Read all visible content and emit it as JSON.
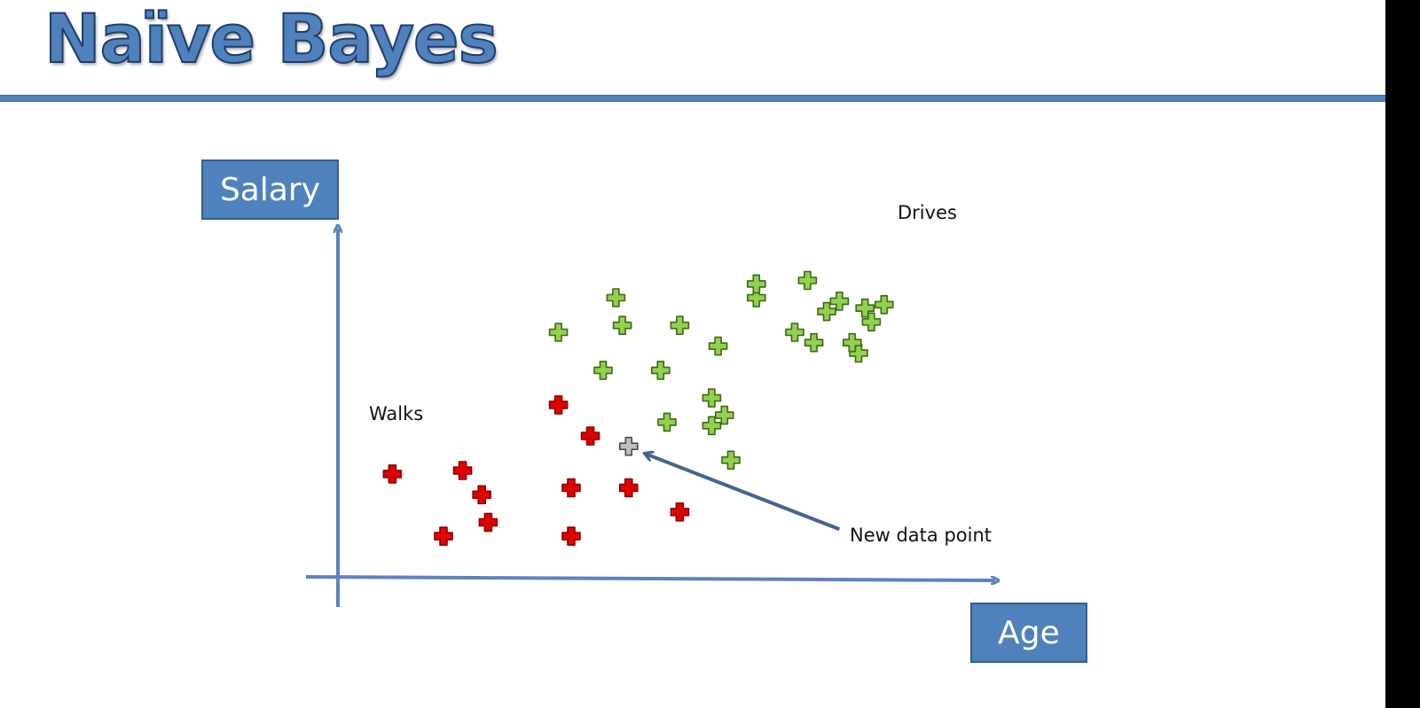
{
  "slide": {
    "title": "Naïve Bayes"
  },
  "axes": {
    "y_label": "Salary",
    "x_label": "Age"
  },
  "labels": {
    "drives": "Drives",
    "walks": "Walks",
    "new_point": "New data point"
  },
  "colors": {
    "accent": "#4f81bd",
    "drives": "#92d050",
    "walks": "#e00000",
    "new": "#bfbfbf",
    "arrow": "#44638f"
  },
  "chart_data": {
    "type": "scatter",
    "xlim": [
      0,
      100
    ],
    "ylim": [
      0,
      100
    ],
    "series": [
      {
        "name": "Drives",
        "color": "#92d050",
        "points": [
          [
            33,
            70
          ],
          [
            42,
            80
          ],
          [
            43,
            72
          ],
          [
            52,
            72
          ],
          [
            40,
            59
          ],
          [
            49,
            59
          ],
          [
            57,
            51
          ],
          [
            50,
            44
          ],
          [
            57,
            43
          ],
          [
            64,
            80
          ],
          [
            58,
            66
          ],
          [
            64,
            84
          ],
          [
            72,
            85
          ],
          [
            77,
            79
          ],
          [
            75,
            76
          ],
          [
            81,
            77
          ],
          [
            80,
            64
          ],
          [
            73,
            67
          ],
          [
            59,
            46
          ],
          [
            60,
            33
          ],
          [
            79,
            67
          ],
          [
            82,
            73
          ],
          [
            84,
            78
          ],
          [
            70,
            70
          ]
        ]
      },
      {
        "name": "Walks",
        "color": "#e00000",
        "points": [
          [
            7,
            29
          ],
          [
            18,
            30
          ],
          [
            21,
            23
          ],
          [
            15,
            11
          ],
          [
            33,
            49
          ],
          [
            38,
            40
          ],
          [
            35,
            25
          ],
          [
            44,
            25
          ],
          [
            52,
            18
          ],
          [
            35,
            11
          ],
          [
            22,
            15
          ]
        ]
      },
      {
        "name": "New data point",
        "color": "#bfbfbf",
        "points": [
          [
            44,
            37
          ]
        ]
      }
    ],
    "annotation": {
      "text": "New data point",
      "from": [
        77,
        13
      ],
      "to": [
        44.5,
        36
      ]
    }
  }
}
